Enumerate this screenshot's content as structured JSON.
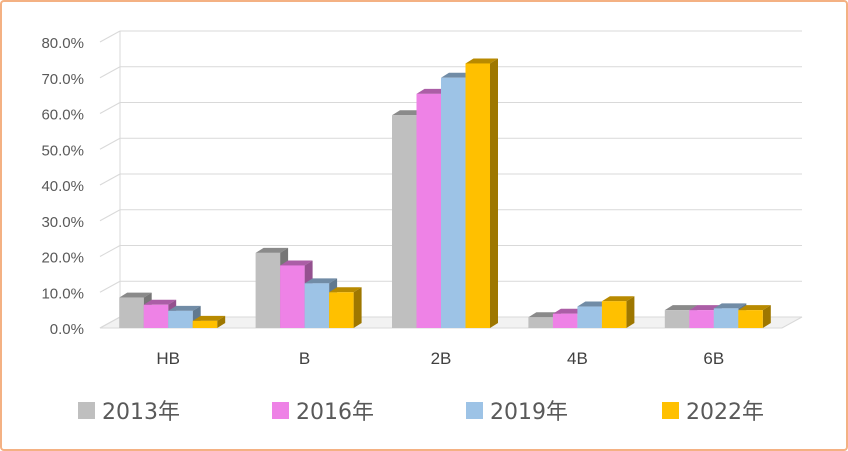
{
  "chart_data": {
    "type": "bar",
    "title": "",
    "xlabel": "",
    "ylabel": "",
    "categories": [
      "HB",
      "B",
      "2B",
      "4B",
      "6B"
    ],
    "series": [
      {
        "name": "2013年",
        "color": "#bfbfbf",
        "values": [
          8.5,
          21.0,
          59.5,
          3.0,
          5.0
        ]
      },
      {
        "name": "2016年",
        "color": "#ee82e6",
        "values": [
          6.5,
          17.5,
          65.5,
          4.0,
          5.0
        ]
      },
      {
        "name": "2019年",
        "color": "#9dc3e6",
        "values": [
          4.8,
          12.5,
          70.0,
          6.0,
          5.5
        ]
      },
      {
        "name": "2022年",
        "color": "#ffc000",
        "values": [
          2.0,
          10.0,
          74.0,
          7.5,
          5.0
        ]
      }
    ],
    "ylim": [
      0,
      80
    ],
    "yticks": [
      "0.0%",
      "10.0%",
      "20.0%",
      "30.0%",
      "40.0%",
      "50.0%",
      "60.0%",
      "70.0%",
      "80.0%"
    ],
    "grid": true,
    "legend": "bottom"
  }
}
